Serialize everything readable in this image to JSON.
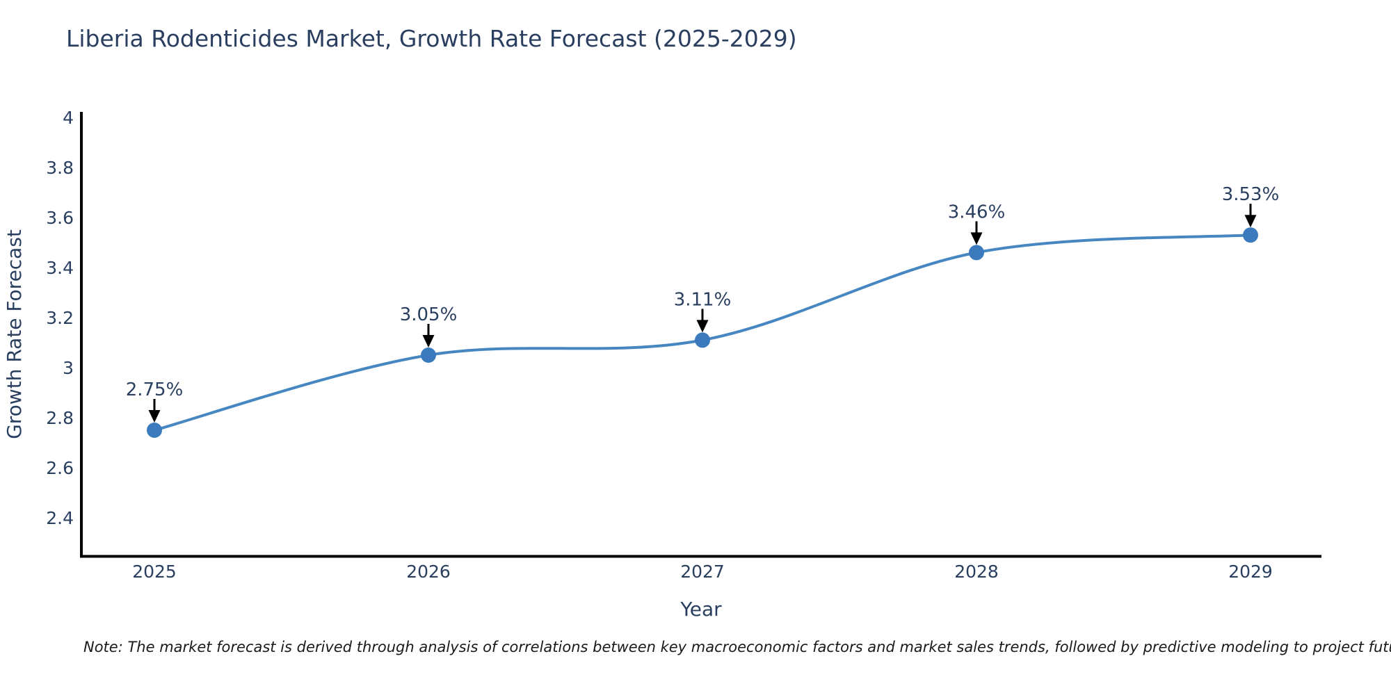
{
  "title": "Liberia Rodenticides Market, Growth Rate Forecast (2025-2029)",
  "note": "Note: The market forecast is derived through analysis of correlations between key macroeconomic factors and market sales trends, followed by predictive modeling to project future sales",
  "chart_data": {
    "type": "line",
    "line_shape": "spline",
    "title": "Liberia Rodenticides Market, Growth Rate Forecast (2025-2029)",
    "xlabel": "Year",
    "ylabel": "Growth Rate Forecast",
    "categories": [
      "2025",
      "2026",
      "2027",
      "2028",
      "2029"
    ],
    "series": [
      {
        "name": "Growth Rate Forecast",
        "values": [
          2.75,
          3.05,
          3.11,
          3.46,
          3.53
        ]
      }
    ],
    "point_labels": [
      "2.75%",
      "3.05%",
      "3.11%",
      "3.46%",
      "3.53%"
    ],
    "ylim": [
      2.25,
      4.03
    ],
    "yticks": [
      2.4,
      2.6,
      2.8,
      3,
      3.2,
      3.4,
      3.6,
      3.8,
      4
    ],
    "ytick_labels": [
      "2.4",
      "2.6",
      "2.8",
      "3",
      "3.2",
      "3.4",
      "3.6",
      "3.8",
      "4"
    ],
    "grid": false,
    "legend_position": "none",
    "markers": true,
    "annotations_arrow": "down"
  },
  "colors": {
    "line": "#4787c1",
    "marker": "#3a7abd",
    "axis": "#000000",
    "text": "#2a3f5f",
    "annotation_text": "#2a3f5f",
    "arrow": "#000000",
    "note_text": "#1a1a1a",
    "background": "#ffffff"
  }
}
